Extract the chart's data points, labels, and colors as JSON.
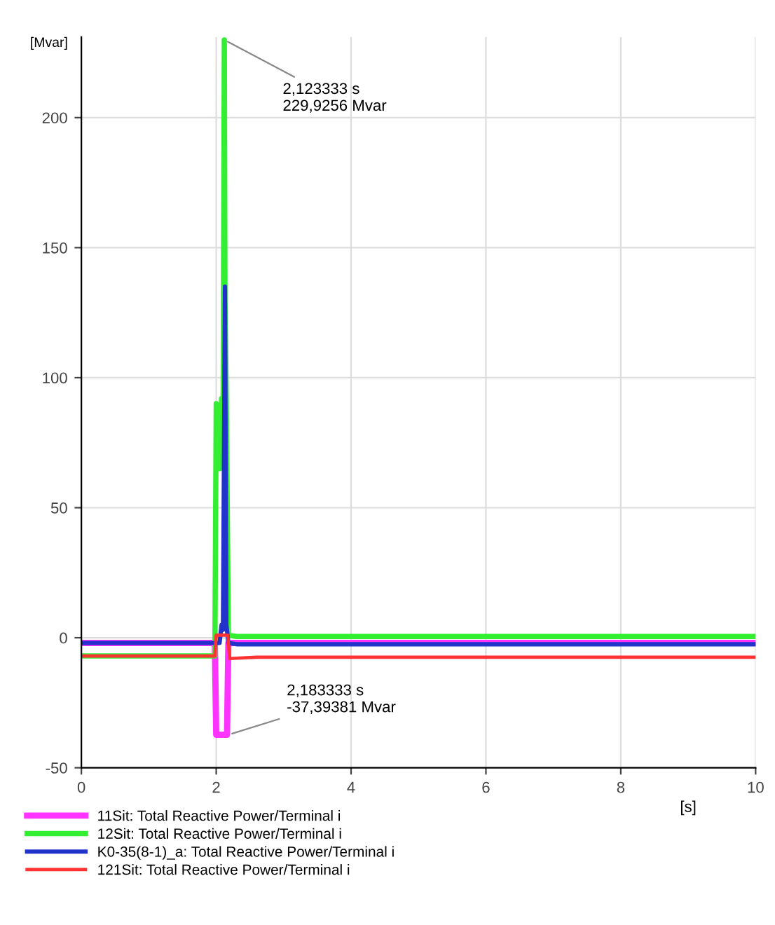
{
  "chart_data": {
    "type": "line",
    "xlabel": "[s]",
    "ylabel": "[Mvar]",
    "xlim": [
      0,
      10
    ],
    "ylim": [
      -50,
      231
    ],
    "xticks": [
      0,
      2,
      4,
      6,
      8,
      10
    ],
    "yticks": [
      -50,
      0,
      50,
      100,
      150,
      200
    ],
    "grid": true,
    "legend": "bottom",
    "marker": "none",
    "line_style": "solid",
    "series": [
      {
        "name": "11Sit: Total Reactive Power/Terminal i",
        "color": "#ff33ff",
        "x": [
          0,
          1.98,
          2.0,
          2.02,
          2.16,
          2.18,
          2.3,
          10
        ],
        "values": [
          -2,
          -2,
          -37.3,
          -37.3,
          -37.3,
          -2,
          -2,
          -2
        ]
      },
      {
        "name": "12Sit: Total Reactive Power/Terminal i",
        "color": "#33ee33",
        "x": [
          0,
          1.98,
          2.0,
          2.05,
          2.08,
          2.1,
          2.12,
          2.13,
          2.15,
          2.18,
          2.3,
          10
        ],
        "values": [
          -7,
          -7,
          90,
          65,
          92,
          70,
          229.9,
          130,
          90,
          1,
          0.5,
          0.5
        ]
      },
      {
        "name": "K0-35(8-1)_a: Total Reactive Power/Terminal i",
        "color": "#2233cc",
        "x": [
          0,
          2.05,
          2.08,
          2.1,
          2.13,
          2.15,
          2.18,
          2.3,
          10
        ],
        "values": [
          -2,
          -2,
          5,
          3,
          135,
          5,
          -2,
          -2.5,
          -2.5
        ]
      },
      {
        "name": "121Sit: Total Reactive Power/Terminal i",
        "color": "#ff3333",
        "x": [
          0,
          1.98,
          2.0,
          2.17,
          2.2,
          2.6,
          10
        ],
        "values": [
          -7,
          -7,
          1,
          1,
          -8,
          -7.5,
          -7.5
        ]
      }
    ],
    "annotations": [
      {
        "text": "2,123333 s\n229,9256 Mvar",
        "x": 2.12,
        "y": 229.9
      },
      {
        "text": "2,183333 s\n-37,39381 Mvar",
        "x": 2.18,
        "y": -37.3
      }
    ]
  }
}
